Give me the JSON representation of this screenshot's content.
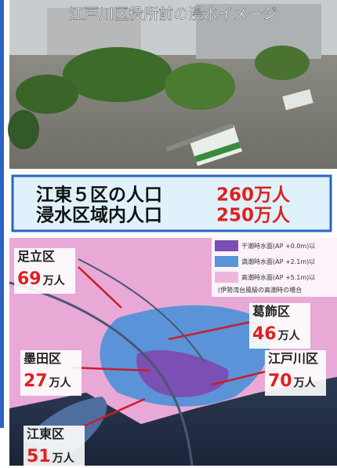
{
  "photo": {
    "caption": "江戸川区役所前の浸水イメージ"
  },
  "summary": {
    "rows": [
      {
        "label": "江東５区の人口",
        "value": "260万人"
      },
      {
        "label": "浸水区域内人口",
        "value": "250万人"
      }
    ]
  },
  "map": {
    "legend": [
      {
        "label": "干潮時水面(AP +0.0m)以",
        "color": "#7b4fb4"
      },
      {
        "label": "満潮時水面(AP +2.1m)以",
        "color": "#5b93d8"
      },
      {
        "label": "高潮時水面(AP +5.1m)以",
        "color": "#efb6dd"
      }
    ],
    "legend_note": "(伊勢湾台風級の高潮時の場合",
    "wards": [
      {
        "name": "足立区",
        "population": "69",
        "unit": "万人"
      },
      {
        "name": "葛飾区",
        "population": "46",
        "unit": "万人"
      },
      {
        "name": "墨田区",
        "population": "27",
        "unit": "万人"
      },
      {
        "name": "江戸川区",
        "population": "70",
        "unit": "万人"
      },
      {
        "name": "江東区",
        "population": "51",
        "unit": "万人"
      }
    ]
  }
}
